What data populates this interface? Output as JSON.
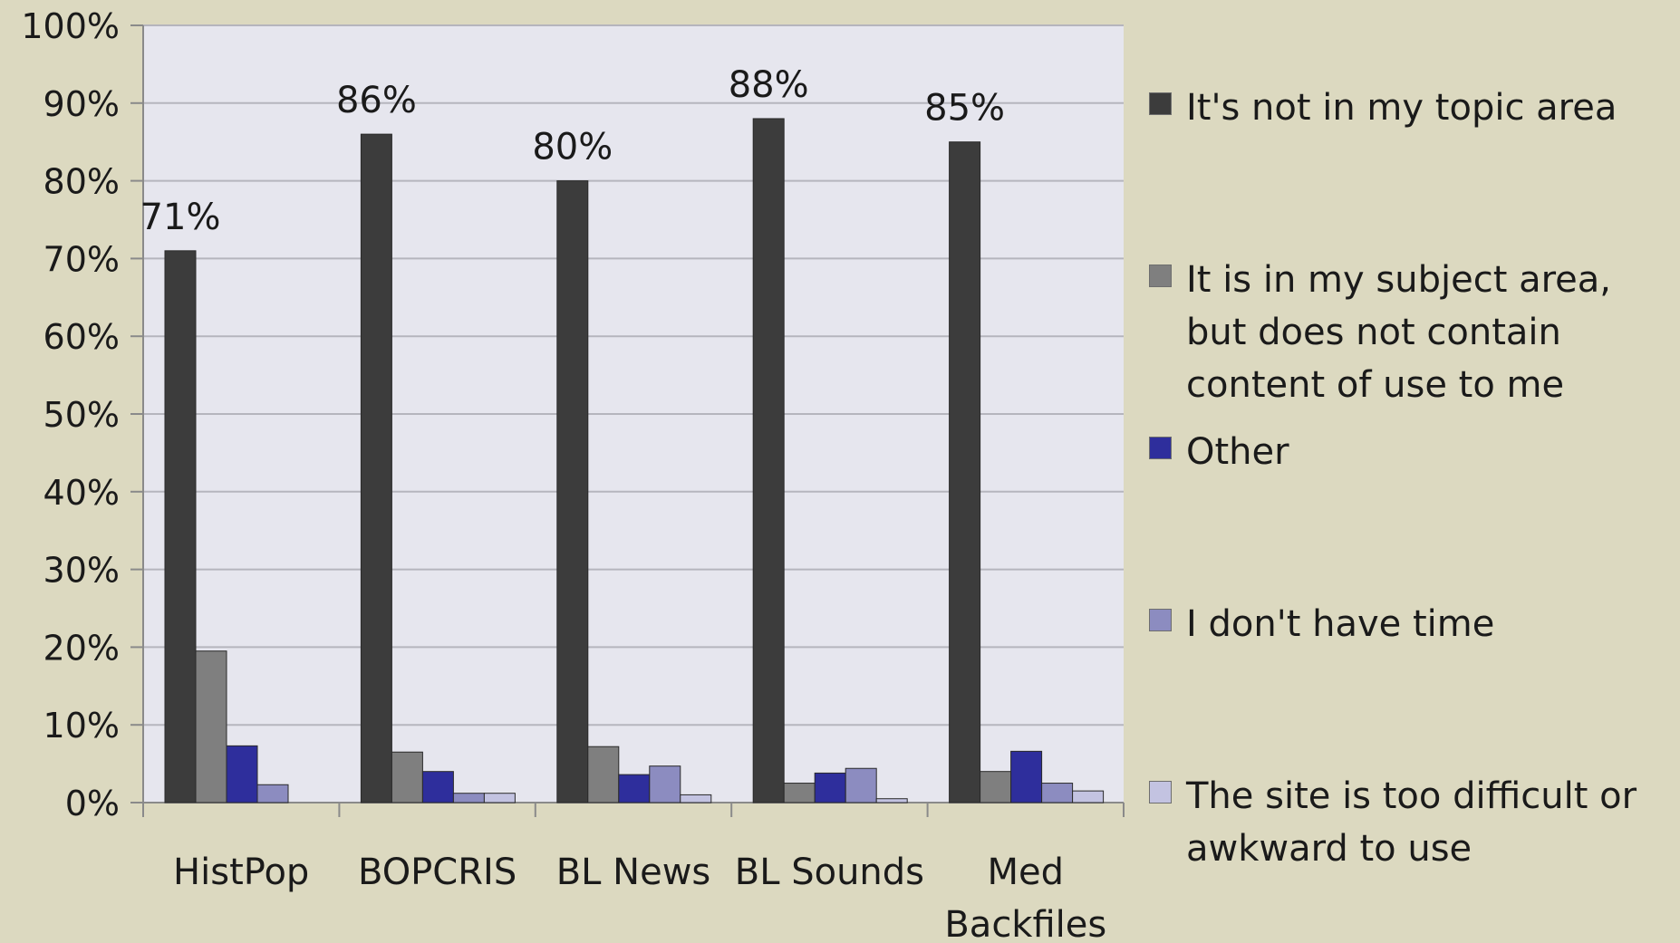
{
  "chart_data": {
    "type": "bar",
    "title": "",
    "xlabel": "",
    "ylabel": "",
    "ylim": [
      0,
      100
    ],
    "y_unit": "%",
    "y_ticks": [
      "0%",
      "10%",
      "20%",
      "30%",
      "40%",
      "50%",
      "60%",
      "70%",
      "80%",
      "90%",
      "100%"
    ],
    "grid": true,
    "legend_position": "right",
    "categories": [
      "HistPop",
      "BOPCRIS",
      "BL News",
      "BL Sounds",
      "Med Backfiles"
    ],
    "series": [
      {
        "name": "It's not in my topic area",
        "color": "#3c3c3c",
        "values": [
          71,
          86,
          80,
          88,
          85
        ]
      },
      {
        "name": "It is in my subject area, but does not contain content of use to me",
        "color": "#7f7f7f",
        "values": [
          19.5,
          6.5,
          7.2,
          2.5,
          4.0
        ]
      },
      {
        "name": "Other",
        "color": "#2e2e9c",
        "values": [
          7.3,
          4.0,
          3.6,
          3.8,
          6.6
        ]
      },
      {
        "name": "I don't have time",
        "color": "#8c8cc0",
        "values": [
          2.3,
          1.2,
          4.7,
          4.4,
          2.5
        ]
      },
      {
        "name": "The site is too difficult or awkward to use",
        "color": "#c3c3e1",
        "values": [
          0,
          1.2,
          1.0,
          0.5,
          1.5
        ]
      }
    ],
    "data_labels": [
      "71%",
      "86%",
      "80%",
      "88%",
      "85%"
    ]
  }
}
